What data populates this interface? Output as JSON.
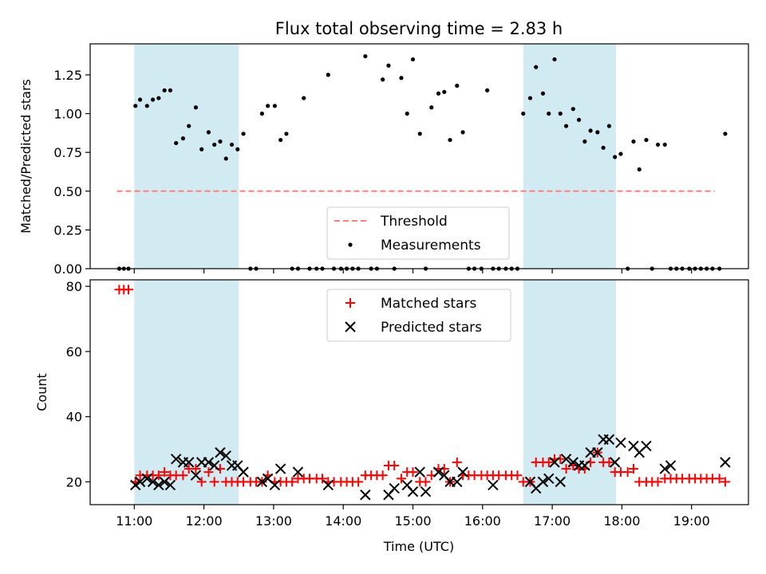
{
  "chart_data": [
    {
      "type": "scatter",
      "title": "Flux total observing time = 2.83 h",
      "xlabel": "",
      "ylabel": "Matched/Predicted stars",
      "xlim": [
        "10:22",
        "19:49"
      ],
      "ylim": [
        0,
        1.45
      ],
      "yticks": [
        "0.00",
        "0.25",
        "0.50",
        "0.75",
        "1.00",
        "1.25"
      ],
      "shaded_intervals": [
        {
          "start": "11:00",
          "end": "12:30",
          "color": "#add8e6"
        },
        {
          "start": "16:35",
          "end": "17:55",
          "color": "#add8e6"
        }
      ],
      "legend_position": "lower-center",
      "series": [
        {
          "name": "Threshold",
          "style": "dashed-line",
          "color": "#ff7f7f",
          "x": [
            "10:45",
            "19:20"
          ],
          "y": [
            0.5,
            0.5
          ]
        },
        {
          "name": "Measurements",
          "style": "dot",
          "color": "#000000",
          "x": [
            "10:47",
            "10:51",
            "10:55",
            "11:01",
            "11:05",
            "11:11",
            "11:16",
            "11:21",
            "11:26",
            "11:31",
            "11:36",
            "11:42",
            "11:47",
            "11:53",
            "11:58",
            "12:04",
            "12:09",
            "12:14",
            "12:19",
            "12:24",
            "12:29",
            "12:34",
            "12:40",
            "12:45",
            "12:50",
            "12:55",
            "13:01",
            "13:06",
            "13:11",
            "13:16",
            "13:21",
            "13:26",
            "13:31",
            "13:37",
            "13:42",
            "13:47",
            "13:52",
            "13:58",
            "14:03",
            "14:08",
            "14:13",
            "14:19",
            "14:24",
            "14:29",
            "14:34",
            "14:39",
            "14:44",
            "14:50",
            "14:55",
            "15:00",
            "15:06",
            "15:11",
            "15:16",
            "15:22",
            "15:27",
            "15:32",
            "15:38",
            "15:43",
            "15:48",
            "15:53",
            "15:59",
            "16:04",
            "16:09",
            "16:14",
            "16:20",
            "16:25",
            "16:30",
            "16:35",
            "16:41",
            "16:46",
            "16:52",
            "16:57",
            "17:02",
            "17:07",
            "17:12",
            "17:18",
            "17:23",
            "17:28",
            "17:33",
            "17:39",
            "17:44",
            "17:49",
            "17:54",
            "17:59",
            "18:05",
            "18:10",
            "18:15",
            "18:21",
            "18:26",
            "18:31",
            "18:37",
            "18:42",
            "18:47",
            "18:52",
            "18:58",
            "19:03",
            "19:08",
            "19:13",
            "19:18",
            "19:24",
            "19:29"
          ],
          "y": [
            0,
            0,
            0,
            1.05,
            1.09,
            1.05,
            1.09,
            1.1,
            1.15,
            1.15,
            0.81,
            0.84,
            0.92,
            1.04,
            0.77,
            0.88,
            0.8,
            0.82,
            0.71,
            0.8,
            0.77,
            0.87,
            0,
            0,
            1.0,
            1.05,
            1.05,
            0.83,
            0.87,
            0,
            0,
            1.1,
            0,
            0,
            0,
            1.25,
            0,
            0,
            0,
            0,
            0,
            1.37,
            0,
            0,
            1.22,
            1.31,
            0,
            1.23,
            1.0,
            1.35,
            0.87,
            0,
            1.04,
            1.13,
            1.14,
            0.83,
            1.18,
            0.88,
            0,
            0,
            0,
            1.15,
            0,
            0,
            0,
            0,
            0,
            1.0,
            1.1,
            1.3,
            1.13,
            1.0,
            1.35,
            1.0,
            0.92,
            1.03,
            0.96,
            0.82,
            0.89,
            0.88,
            0.78,
            0.92,
            0.72,
            0.74,
            0,
            0.82,
            0.64,
            0.83,
            0,
            0.8,
            0.8,
            0,
            0,
            0,
            0,
            0,
            0,
            0,
            0,
            0,
            0.87
          ]
        }
      ]
    },
    {
      "type": "scatter",
      "title": "",
      "xlabel": "Time (UTC)",
      "ylabel": "Count",
      "xlim": [
        "10:22",
        "19:49"
      ],
      "ylim": [
        13,
        82
      ],
      "yticks": [
        "20",
        "40",
        "60",
        "80"
      ],
      "xticks": [
        "11:00",
        "12:00",
        "13:00",
        "14:00",
        "15:00",
        "16:00",
        "17:00",
        "18:00",
        "19:00"
      ],
      "shaded_intervals": [
        {
          "start": "11:00",
          "end": "12:30",
          "color": "#add8e6"
        },
        {
          "start": "16:35",
          "end": "17:55",
          "color": "#add8e6"
        }
      ],
      "legend_position": "upper-center",
      "series": [
        {
          "name": "Matched stars",
          "style": "plus",
          "color": "#ff0000",
          "x": [
            "10:47",
            "10:51",
            "10:55",
            "11:01",
            "11:05",
            "11:11",
            "11:16",
            "11:21",
            "11:26",
            "11:31",
            "11:36",
            "11:42",
            "11:47",
            "11:53",
            "11:58",
            "12:04",
            "12:09",
            "12:14",
            "12:19",
            "12:24",
            "12:29",
            "12:34",
            "12:40",
            "12:45",
            "12:50",
            "12:55",
            "13:01",
            "13:06",
            "13:11",
            "13:16",
            "13:21",
            "13:26",
            "13:31",
            "13:37",
            "13:42",
            "13:47",
            "13:52",
            "13:58",
            "14:03",
            "14:08",
            "14:13",
            "14:19",
            "14:24",
            "14:29",
            "14:34",
            "14:39",
            "14:44",
            "14:50",
            "14:55",
            "15:00",
            "15:06",
            "15:11",
            "15:16",
            "15:22",
            "15:27",
            "15:32",
            "15:38",
            "15:43",
            "15:48",
            "15:53",
            "15:59",
            "16:04",
            "16:09",
            "16:14",
            "16:20",
            "16:25",
            "16:30",
            "16:35",
            "16:41",
            "16:46",
            "16:52",
            "16:57",
            "17:02",
            "17:07",
            "17:12",
            "17:18",
            "17:23",
            "17:28",
            "17:33",
            "17:39",
            "17:44",
            "17:49",
            "17:54",
            "17:59",
            "18:05",
            "18:10",
            "18:15",
            "18:21",
            "18:26",
            "18:31",
            "18:37",
            "18:42",
            "18:47",
            "18:52",
            "18:58",
            "19:03",
            "19:08",
            "19:13",
            "19:18",
            "19:24",
            "19:29"
          ],
          "y": [
            79,
            79,
            79,
            20,
            22,
            22,
            22,
            22,
            23,
            22,
            22,
            22,
            24,
            24,
            20,
            23,
            20,
            24,
            20,
            20,
            20,
            20,
            20,
            20,
            20,
            22,
            20,
            20,
            20,
            20,
            21,
            21,
            21,
            21,
            21,
            20,
            20,
            20,
            20,
            20,
            20,
            22,
            22,
            22,
            22,
            25,
            25,
            21,
            23,
            23,
            20,
            20,
            22,
            24,
            24,
            20,
            26,
            22,
            22,
            22,
            22,
            22,
            22,
            22,
            22,
            22,
            22,
            20,
            20,
            26,
            26,
            26,
            27,
            27,
            24,
            25,
            24,
            24,
            26,
            29,
            26,
            26,
            23,
            23,
            23,
            24,
            20,
            20,
            20,
            20,
            21,
            21,
            21,
            21,
            21,
            21,
            21,
            21,
            21,
            21,
            20
          ]
        },
        {
          "name": "Predicted stars",
          "style": "x",
          "color": "#000000",
          "x": [
            "11:01",
            "11:05",
            "11:11",
            "11:16",
            "11:21",
            "11:26",
            "11:31",
            "11:36",
            "11:42",
            "11:47",
            "11:53",
            "11:58",
            "12:04",
            "12:09",
            "12:14",
            "12:19",
            "12:24",
            "12:29",
            "12:34",
            "12:50",
            "12:55",
            "13:01",
            "13:06",
            "13:21",
            "13:47",
            "14:19",
            "14:39",
            "14:44",
            "14:55",
            "15:00",
            "15:06",
            "15:11",
            "15:22",
            "15:27",
            "15:32",
            "15:38",
            "15:43",
            "16:09",
            "16:41",
            "16:46",
            "16:52",
            "16:57",
            "17:02",
            "17:07",
            "17:12",
            "17:18",
            "17:23",
            "17:28",
            "17:33",
            "17:39",
            "17:44",
            "17:49",
            "17:54",
            "17:59",
            "18:10",
            "18:15",
            "18:21",
            "18:37",
            "18:42",
            "19:29"
          ],
          "y": [
            19,
            20,
            21,
            20,
            19,
            20,
            19,
            27,
            26,
            26,
            22,
            26,
            26,
            25,
            29,
            28,
            25,
            25,
            23,
            20,
            21,
            19,
            24,
            23,
            19,
            16,
            16,
            18,
            19,
            17,
            23,
            17,
            23,
            22,
            20,
            20,
            23,
            19,
            20,
            18,
            20,
            21,
            26,
            20,
            27,
            26,
            25,
            25,
            29,
            29,
            33,
            33,
            26,
            32,
            31,
            29,
            31,
            24,
            25,
            26
          ]
        }
      ]
    }
  ]
}
